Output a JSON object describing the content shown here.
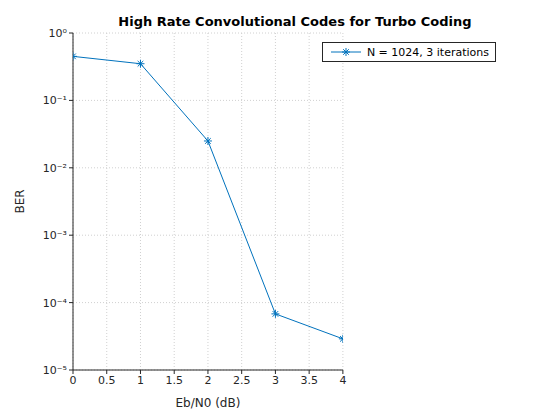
{
  "chart_data": {
    "type": "line",
    "title": "High Rate Convolutional Codes for Turbo Coding",
    "x_label": "Eb/N0 (dB)",
    "y_label": "BER",
    "x": [
      0,
      1,
      2,
      3,
      4
    ],
    "series": [
      {
        "name": "N = 1024, 3 iterations",
        "color": "#0072bd",
        "marker": "asterisk",
        "line_style": "solid",
        "values": [
          0.45,
          0.35,
          0.025,
          6.8e-05,
          2.9e-05
        ]
      }
    ],
    "xlim": [
      0,
      4
    ],
    "xticks": [
      0,
      0.5,
      1,
      1.5,
      2,
      2.5,
      3,
      3.5,
      4
    ],
    "ylim": [
      1e-05,
      1
    ],
    "yticks": [
      {
        "value": 1e-05,
        "label": "10⁻⁵"
      },
      {
        "value": 0.0001,
        "label": "10⁻⁴"
      },
      {
        "value": 0.001,
        "label": "10⁻³"
      },
      {
        "value": 0.01,
        "label": "10⁻²"
      },
      {
        "value": 0.1,
        "label": "10⁻¹"
      },
      {
        "value": 1,
        "label": "10⁰"
      }
    ],
    "log": "y",
    "grid": true,
    "legend": "upper right"
  }
}
